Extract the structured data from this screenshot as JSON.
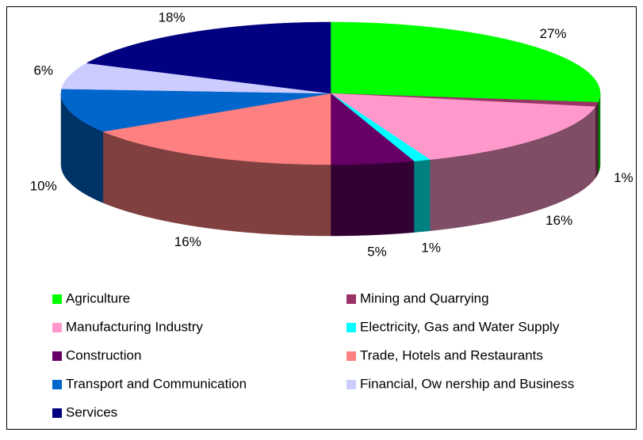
{
  "chart_data": {
    "type": "pie3d",
    "categories": [
      "Agriculture",
      "Mining and Quarrying",
      "Manufacturing Industry",
      "Electricity, Gas and Water Supply",
      "Construction",
      "Trade, Hotels and Restaurants",
      "Transport and Communication",
      "Financial, Ow nership and Business",
      "Services"
    ],
    "values": [
      27,
      1,
      16,
      1,
      5,
      16,
      10,
      6,
      18
    ],
    "value_labels": [
      "27%",
      "1%",
      "16%",
      "1%",
      "5%",
      "16%",
      "10%",
      "6%",
      "18%"
    ],
    "colors": [
      "#00ff00",
      "#993366",
      "#ff99cc",
      "#00ffff",
      "#660066",
      "#ff8080",
      "#0066cc",
      "#ccccff",
      "#000080"
    ],
    "legend": "bottom"
  }
}
